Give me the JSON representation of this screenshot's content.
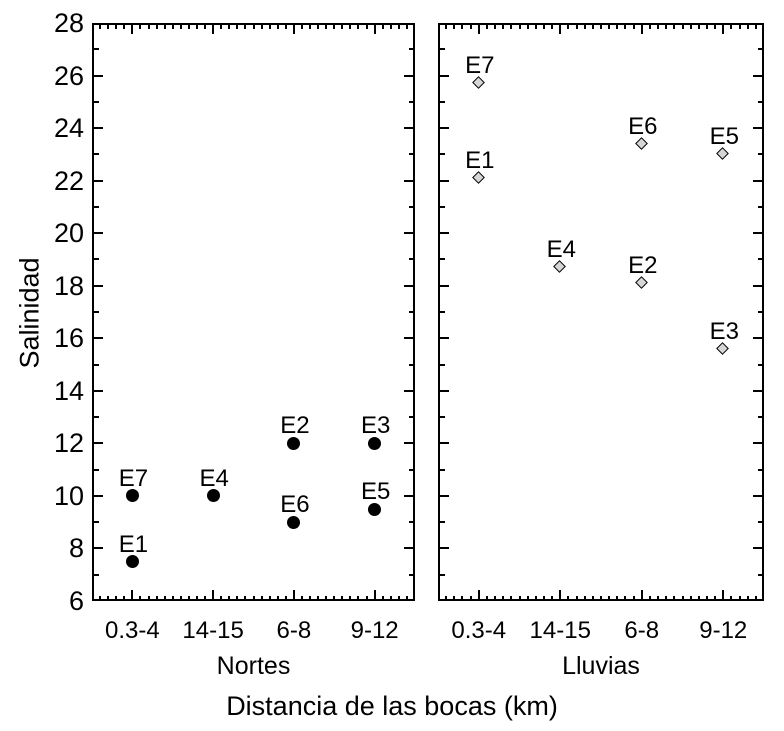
{
  "chart_data": {
    "type": "scatter",
    "title": "",
    "ylabel": "Salinidad",
    "xlabel": "Distancia de las bocas (km)",
    "ylim": [
      6,
      28
    ],
    "y_major_step": 2,
    "y_minor_step": 1,
    "y_tick_labels": [
      "28",
      "26",
      "24",
      "22",
      "20",
      "18",
      "16",
      "14",
      "12",
      "10",
      "8",
      "6"
    ],
    "categories": [
      "0.3-4",
      "14-15",
      "6-8",
      "9-12"
    ],
    "grid": false,
    "legend_position": "none",
    "frame_color": "#000000",
    "background_color": "#ffffff",
    "text_color": "#000000",
    "panels": [
      {
        "label": "Nortes",
        "marker": "circle",
        "marker_fill": "#000000",
        "marker_edge": "#000000",
        "points": [
          {
            "label": "E1",
            "category": "0.3-4",
            "value": 7.5
          },
          {
            "label": "E7",
            "category": "0.3-4",
            "value": 10.0
          },
          {
            "label": "E4",
            "category": "14-15",
            "value": 10.0
          },
          {
            "label": "E2",
            "category": "6-8",
            "value": 12.0
          },
          {
            "label": "E6",
            "category": "6-8",
            "value": 9.0
          },
          {
            "label": "E3",
            "category": "9-12",
            "value": 12.0
          },
          {
            "label": "E5",
            "category": "9-12",
            "value": 9.5
          }
        ]
      },
      {
        "label": "Lluvias",
        "marker": "diamond",
        "marker_fill": "#d6d6d6",
        "marker_edge": "#000000",
        "points": [
          {
            "label": "E1",
            "category": "0.3-4",
            "value": 22.1
          },
          {
            "label": "E7",
            "category": "0.3-4",
            "value": 25.7
          },
          {
            "label": "E4",
            "category": "14-15",
            "value": 18.7
          },
          {
            "label": "E2",
            "category": "6-8",
            "value": 18.1
          },
          {
            "label": "E6",
            "category": "6-8",
            "value": 23.4
          },
          {
            "label": "E3",
            "category": "9-12",
            "value": 15.6
          },
          {
            "label": "E5",
            "category": "9-12",
            "value": 23.0
          }
        ]
      }
    ]
  }
}
